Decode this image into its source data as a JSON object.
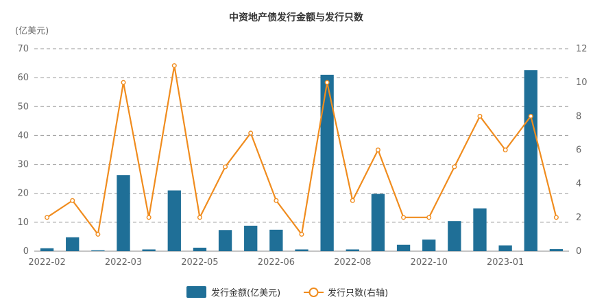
{
  "chart_data": {
    "type": "bar",
    "title": "中资地产债发行金额与发行只数",
    "y_unit_label": "(亿美元)",
    "x_tick_labels": [
      "2022-02",
      "2022-03",
      "2022-05",
      "2022-06",
      "2022-08",
      "2022-10",
      "2023-01"
    ],
    "ylim_left": [
      0,
      70
    ],
    "yticks_left": [
      0,
      10,
      20,
      30,
      40,
      50,
      60,
      70
    ],
    "ylim_right": [
      0,
      12
    ],
    "yticks_right": [
      0,
      2,
      4,
      6,
      8,
      10,
      12
    ],
    "grid": true,
    "legend_position": "bottom",
    "series": [
      {
        "name": "发行金额(亿美元)",
        "type": "bar",
        "axis": "left",
        "color": "#1f6f97",
        "values": [
          1.0,
          4.8,
          0.3,
          26.3,
          0.6,
          21.0,
          1.2,
          7.3,
          8.8,
          7.4,
          0.6,
          61.0,
          0.6,
          19.8,
          2.2,
          4.0,
          10.4,
          14.8,
          2.0,
          62.6,
          0.7
        ]
      },
      {
        "name": "发行只数(右轴)",
        "type": "line",
        "axis": "right",
        "color": "#f08c1e",
        "values": [
          2,
          3,
          1,
          10,
          2,
          11,
          2,
          5,
          7,
          3,
          1,
          10,
          3,
          6,
          2,
          2,
          5,
          8,
          6,
          8,
          2
        ]
      }
    ]
  }
}
